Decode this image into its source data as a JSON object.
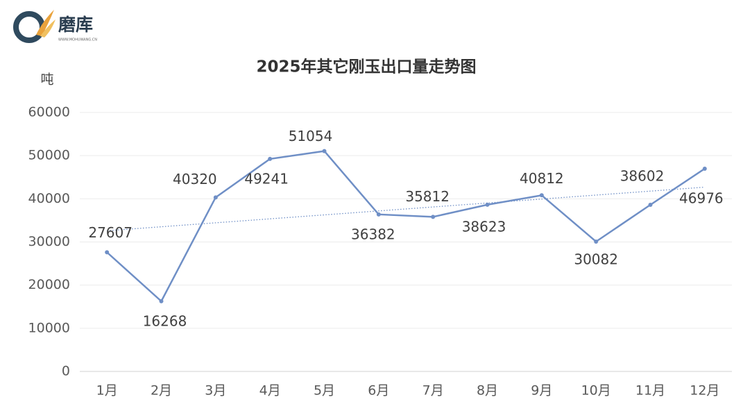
{
  "logo": {
    "name": "磨库",
    "url": "WWW.MOHUWANG.CN"
  },
  "chart_data": {
    "type": "line",
    "title": "2025年其它刚玉出口量走势图",
    "y_axis_label": "吨",
    "categories": [
      "1月",
      "2月",
      "3月",
      "4月",
      "5月",
      "6月",
      "7月",
      "8月",
      "9月",
      "10月",
      "11月",
      "12月"
    ],
    "values": [
      27607,
      16268,
      40320,
      49241,
      51054,
      36382,
      35812,
      38623,
      40812,
      30082,
      38602,
      46976
    ],
    "color": "#6f8fc6",
    "trendline": "linear",
    "grid": true,
    "ylim": [
      0,
      60000
    ],
    "yticks": [
      0,
      10000,
      20000,
      30000,
      40000,
      50000,
      60000
    ]
  }
}
